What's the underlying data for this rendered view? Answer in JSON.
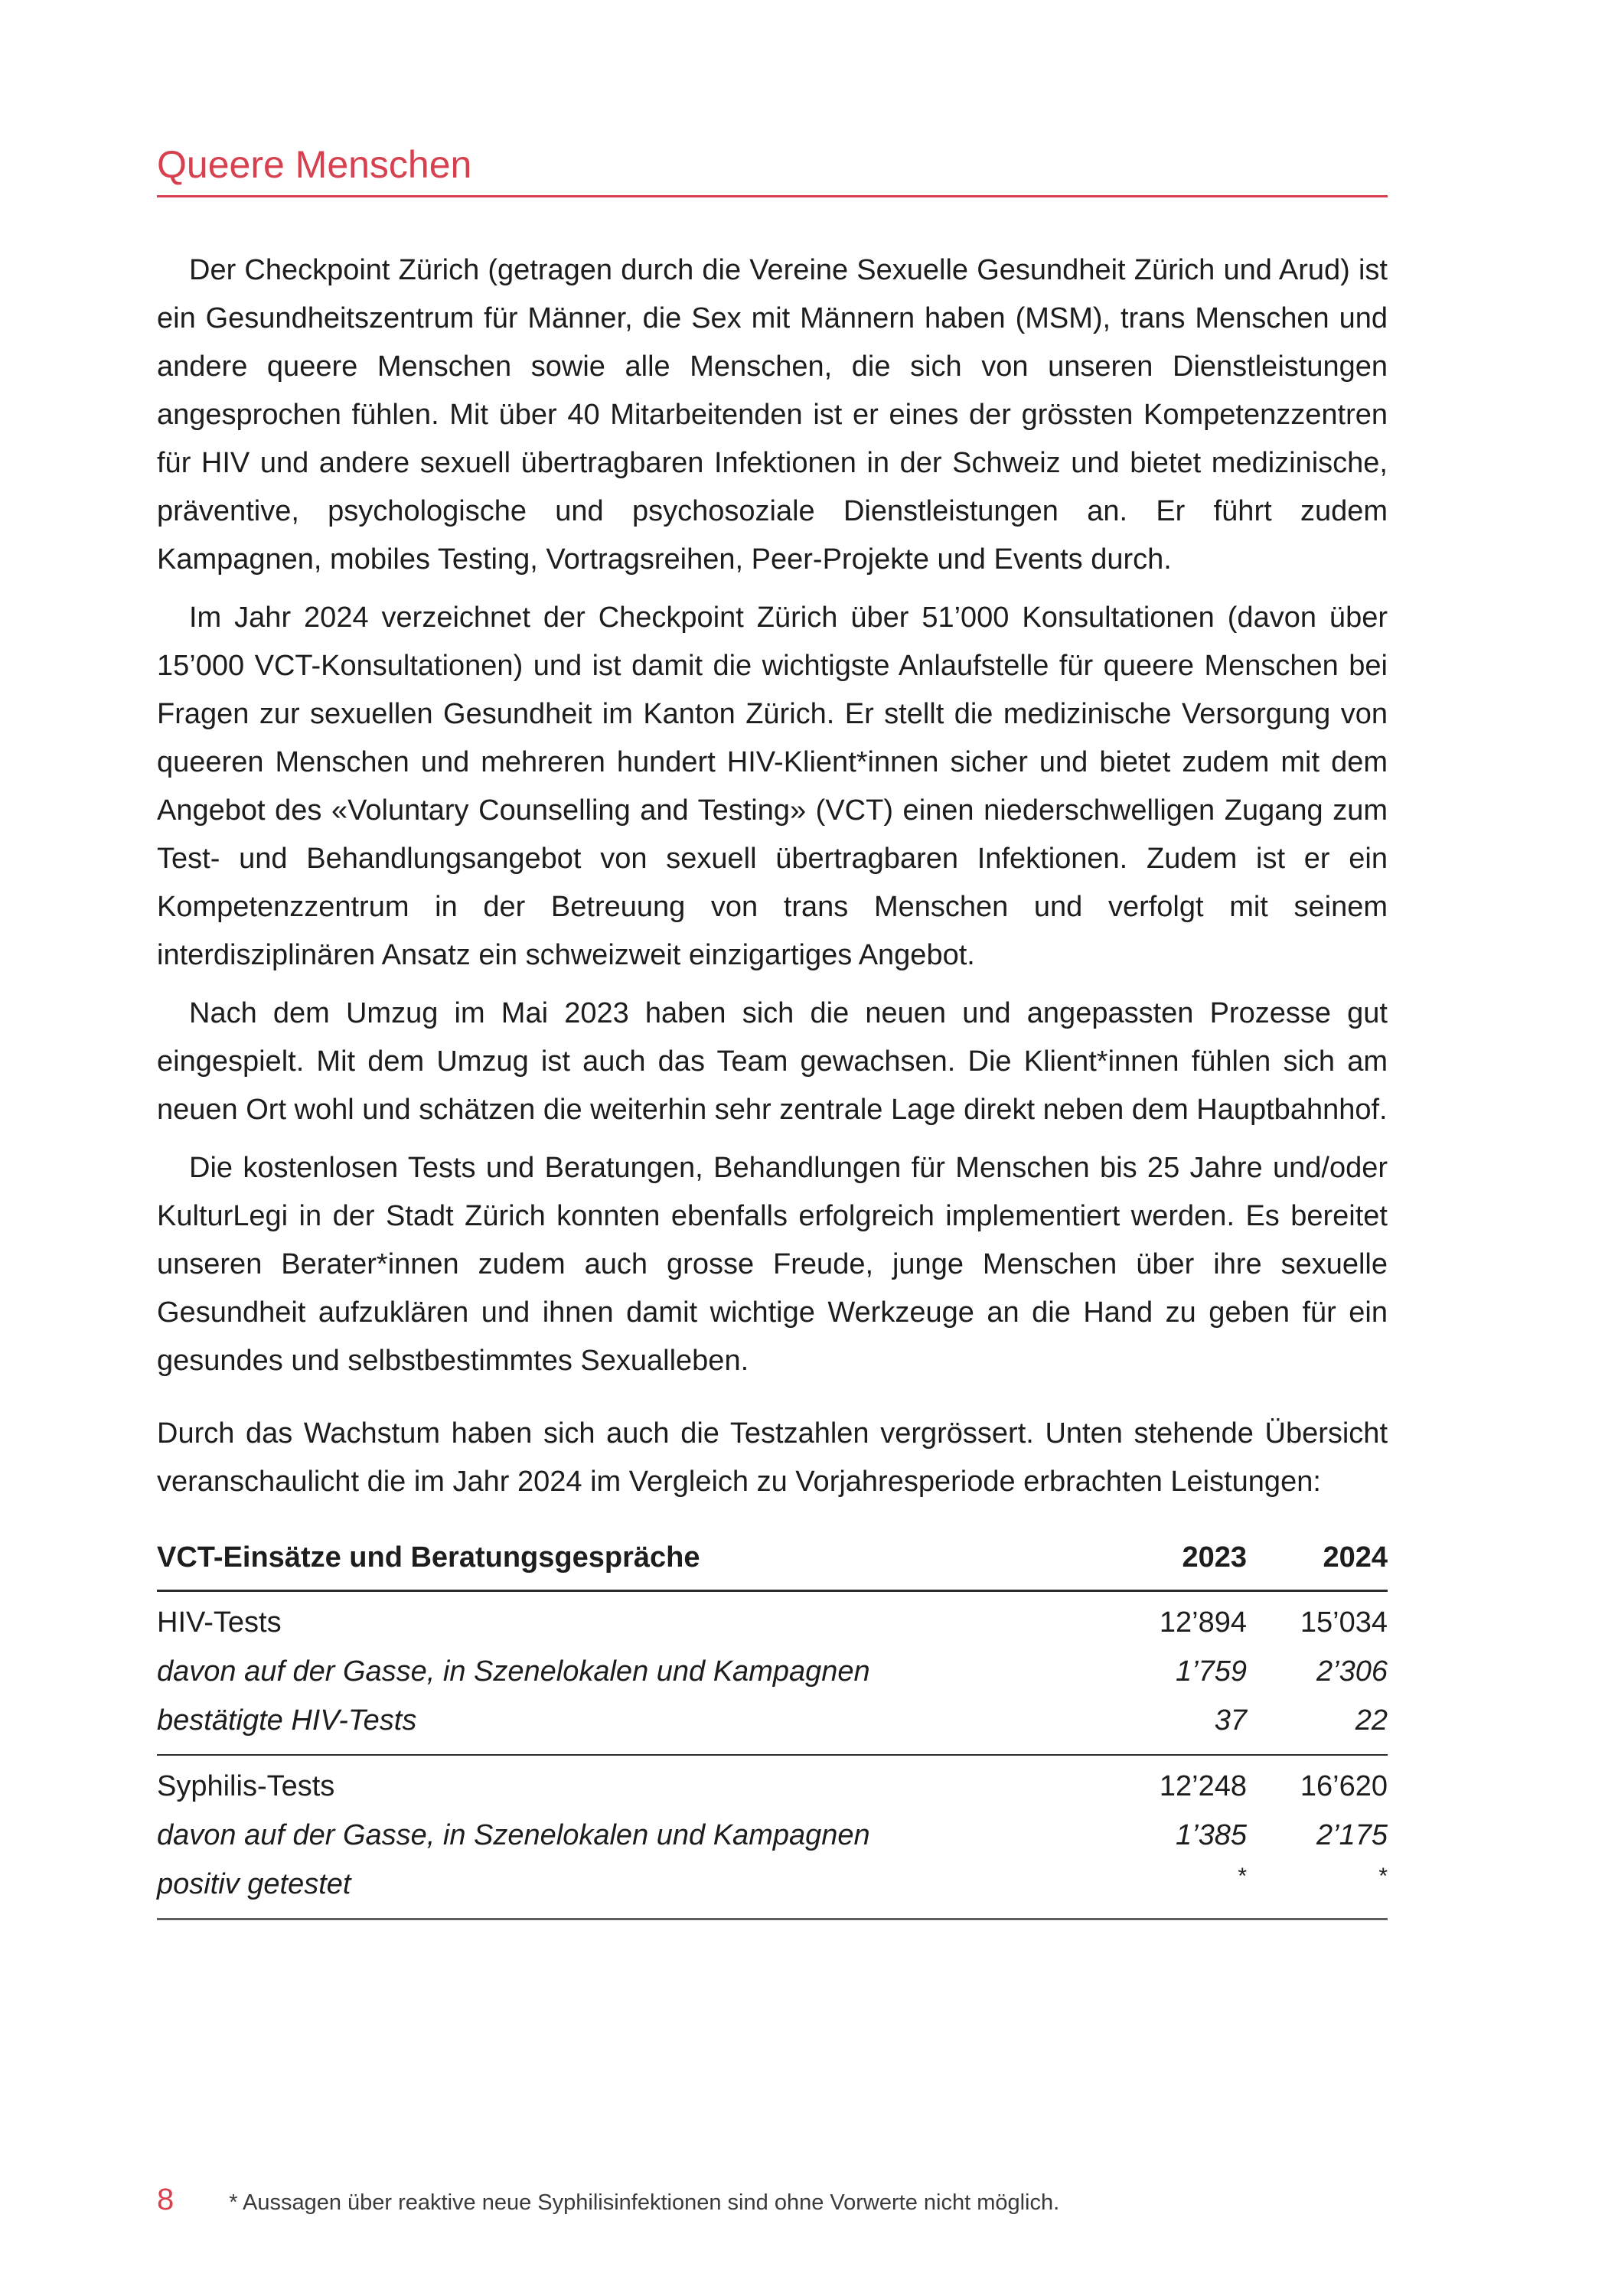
{
  "document": {
    "section_title": "Queere Menschen",
    "page_number": "8",
    "footnote": "* Aussagen über reaktive neue Syphilisinfektionen sind ohne Vorwerte nicht möglich."
  },
  "colors": {
    "accent_red": "#d6404f",
    "body_text": "#1d1d1b",
    "table_rule_dark": "#2b2b2b",
    "table_rule_gray": "#5e5e5e"
  },
  "paragraphs": [
    {
      "indent": true,
      "text": "Der Checkpoint Zürich (getragen durch die Vereine Sexuelle Gesundheit Zürich und Arud) ist ein Gesundheitszentrum für Männer, die Sex mit Männern haben (MSM), trans Menschen und andere queere Menschen sowie alle Menschen, die sich von unseren Dienstleistungen angesprochen fühlen. Mit über 40 Mitarbeitenden ist er eines der grössten Kompetenzzentren für HIV und andere sexuell übertragbaren Infektionen in der Schweiz und bietet medizinische, präventive, psychologische und psychosoziale Dienstleistungen an. Er führt zudem Kampagnen, mobiles Testing, Vortragsreihen, Peer-Projekte und Events durch."
    },
    {
      "indent": true,
      "text": "Im Jahr 2024 verzeichnet der Checkpoint Zürich über 51’000 Konsultationen (davon über 15’000 VCT-Konsultationen) und ist damit die wichtigste Anlaufstelle für queere Menschen bei Fragen zur sexuellen Gesundheit im Kanton Zürich. Er stellt die medizinische Versorgung von queeren Menschen und mehreren hundert HIV-Klient*innen sicher und bietet zudem mit dem Angebot des «Voluntary Counselling and Testing» (VCT) einen niederschwelligen Zugang zum Test- und Behandlungsangebot von sexuell übertragbaren Infektionen. Zudem ist er ein Kompetenzzentrum in der Betreuung von trans Menschen und verfolgt mit seinem interdisziplinären Ansatz ein schweizweit einzigartiges Angebot."
    },
    {
      "indent": true,
      "text": "Nach dem Umzug im Mai 2023 haben sich die neuen und angepassten Prozesse gut eingespielt. Mit dem Umzug ist auch das Team gewachsen. Die Klient*innen fühlen sich am neuen Ort wohl und schätzen die weiterhin sehr zentrale Lage direkt neben dem Hauptbahnhof."
    },
    {
      "indent": true,
      "text": "Die kostenlosen Tests und Beratungen, Behandlungen für Menschen bis 25 Jahre und/oder KulturLegi in der Stadt Zürich konnten ebenfalls erfolgreich implementiert werden. Es bereitet unseren Berater*innen zudem auch grosse Freude, junge Menschen über ihre sexuelle Gesundheit aufzuklären und ihnen damit wichtige Werkzeuge an die Hand zu geben für ein gesundes und selbstbestimmtes Sexualleben."
    },
    {
      "indent": false,
      "text": "Durch das Wachstum haben sich auch die Testzahlen vergrössert. Unten stehende Übersicht veranschaulicht die im Jahr 2024 im Vergleich zu Vorjahresperiode erbrachten Leistungen:"
    }
  ],
  "table": {
    "title": "VCT-Einsätze und Beratungsgespräche",
    "year_columns": [
      "2023",
      "2024"
    ],
    "rows": [
      {
        "label": "HIV-Tests",
        "y2023": "12’894",
        "y2024": "15’034",
        "emphasis": false
      },
      {
        "label": "davon auf der Gasse, in Szenelokalen und Kampagnen",
        "y2023": "1’759",
        "y2024": "2’306",
        "emphasis": true
      },
      {
        "label": "bestätigte HIV-Tests",
        "y2023": "37",
        "y2024": "22",
        "emphasis": true
      },
      {
        "label": "Syphilis-Tests",
        "y2023": "12’248",
        "y2024": "16’620",
        "emphasis": false
      },
      {
        "label": "davon auf der Gasse, in Szenelokalen und Kampagnen",
        "y2023": "1’385",
        "y2024": "2’175",
        "emphasis": true
      },
      {
        "label": "positiv getestet",
        "y2023": "*",
        "y2024": "*",
        "emphasis": true
      }
    ]
  }
}
